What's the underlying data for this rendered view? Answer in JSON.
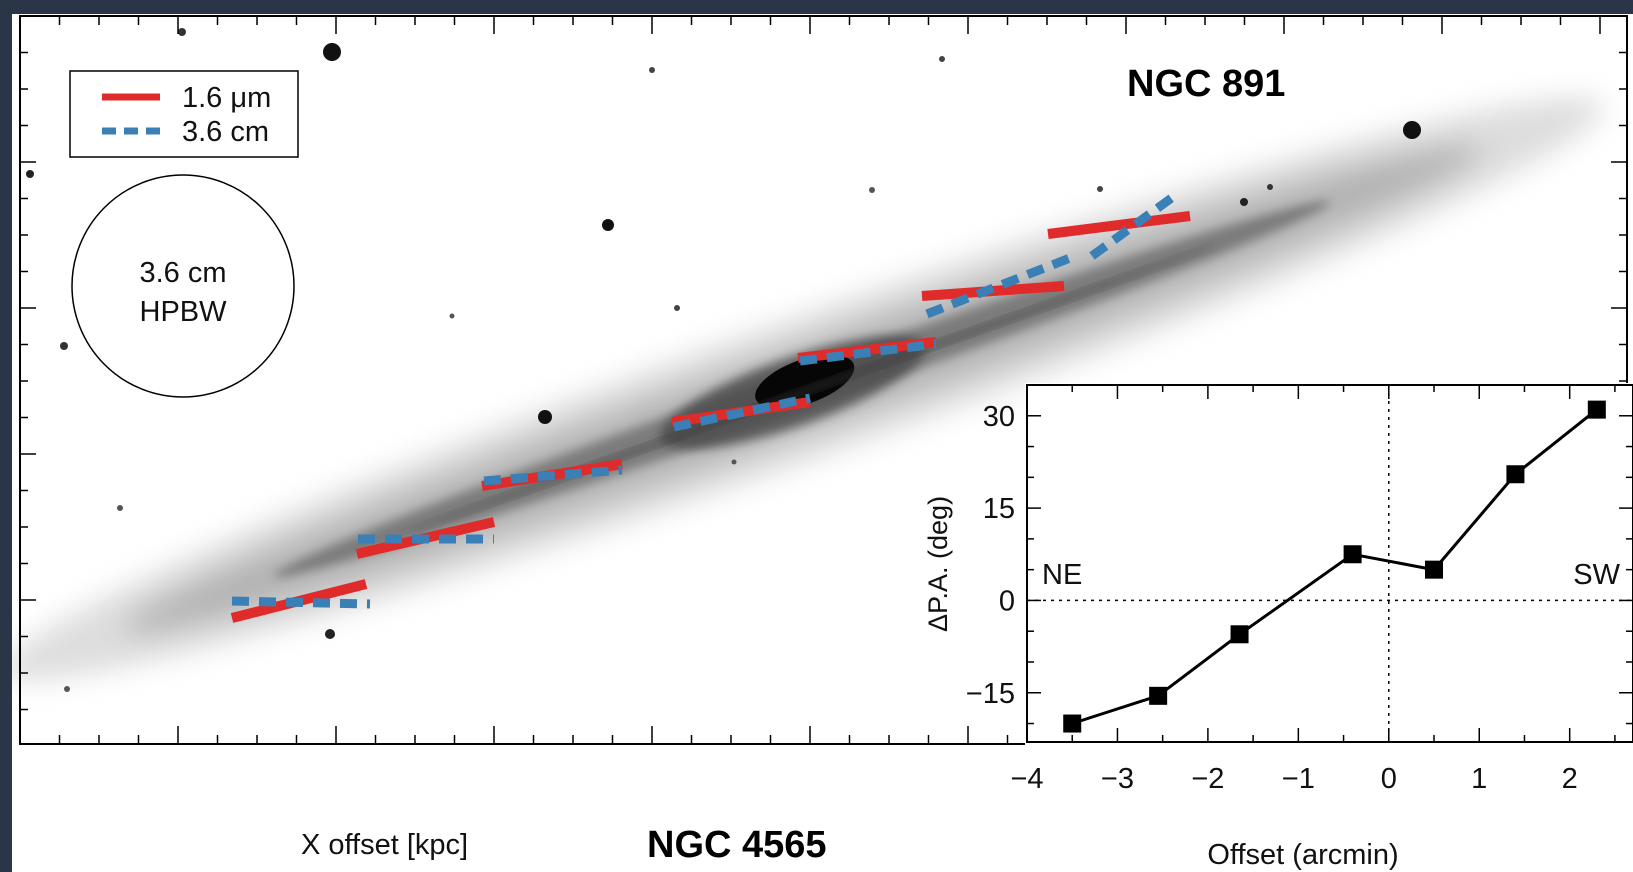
{
  "figure": {
    "galaxy_label": "NGC 891",
    "bottom_label": "NGC 4565",
    "xlabel": "X offset [kpc]",
    "beam_label_line1": "3.6 cm",
    "beam_label_line2": "HPBW"
  },
  "legend": {
    "items": [
      {
        "label": "1.6 μm",
        "color": "#e02b2b",
        "style": "solid"
      },
      {
        "label": "3.6 cm",
        "color": "#3a7fb5",
        "style": "dashed"
      }
    ]
  },
  "colors": {
    "nir": "#e02b2b",
    "radio": "#3a7fb5",
    "background": "#2a3548"
  },
  "chart_data": {
    "type": "line",
    "xlabel": "Offset (arcmin)",
    "ylabel": "ΔP.A. (deg)",
    "xlim": [
      -4,
      2.7
    ],
    "ylim": [
      -23,
      35
    ],
    "xticks": [
      -4,
      -3,
      -2,
      -1,
      0,
      1,
      2
    ],
    "yticks": [
      -15,
      0,
      15,
      30
    ],
    "reference_lines": {
      "x": 0,
      "y": 0
    },
    "annotations": [
      "NE",
      "SW"
    ],
    "x": [
      -3.5,
      -2.55,
      -1.65,
      -0.4,
      0.5,
      1.4,
      2.3
    ],
    "y": [
      -20,
      -15.5,
      -5.5,
      7.5,
      5,
      20.5,
      31
    ],
    "marker": "square",
    "grid": false,
    "legend": "none"
  }
}
